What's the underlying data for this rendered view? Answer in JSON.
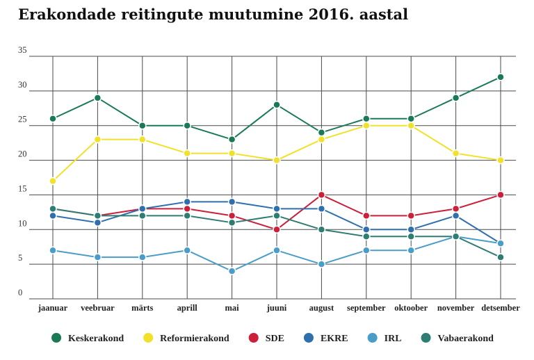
{
  "chart_data": {
    "type": "line",
    "title": "Erakondade reitingute muutumine 2016. aastal",
    "xlabel": "",
    "ylabel": "",
    "ylim": [
      0,
      35
    ],
    "yticks": [
      0,
      5,
      10,
      15,
      20,
      25,
      30,
      35
    ],
    "grid": true,
    "legend_position": "bottom",
    "categories": [
      "jaanuar",
      "veebruar",
      "märts",
      "aprill",
      "mai",
      "juuni",
      "august",
      "september",
      "oktoober",
      "november",
      "detsember"
    ],
    "series": [
      {
        "name": "Keskerakond",
        "color": "#1a7a55",
        "values": [
          26,
          29,
          25,
          25,
          23,
          28,
          24,
          26,
          26,
          29,
          32
        ]
      },
      {
        "name": "Reformierakond",
        "color": "#f2e12a",
        "values": [
          17,
          23,
          23,
          21,
          21,
          20,
          23,
          25,
          25,
          21,
          20
        ]
      },
      {
        "name": "SDE",
        "color": "#cc1f3a",
        "values": [
          13,
          12,
          13,
          13,
          12,
          10,
          15,
          12,
          12,
          13,
          15
        ]
      },
      {
        "name": "EKRE",
        "color": "#2f6fae",
        "values": [
          12,
          11,
          13,
          14,
          14,
          13,
          13,
          10,
          10,
          12,
          8
        ]
      },
      {
        "name": "IRL",
        "color": "#4a9cc9",
        "values": [
          7,
          6,
          6,
          7,
          4,
          7,
          5,
          7,
          7,
          9,
          8
        ]
      },
      {
        "name": "Vabaerakond",
        "color": "#2e7d72",
        "values": [
          13,
          12,
          12,
          12,
          11,
          12,
          10,
          9,
          9,
          9,
          6
        ]
      }
    ]
  }
}
